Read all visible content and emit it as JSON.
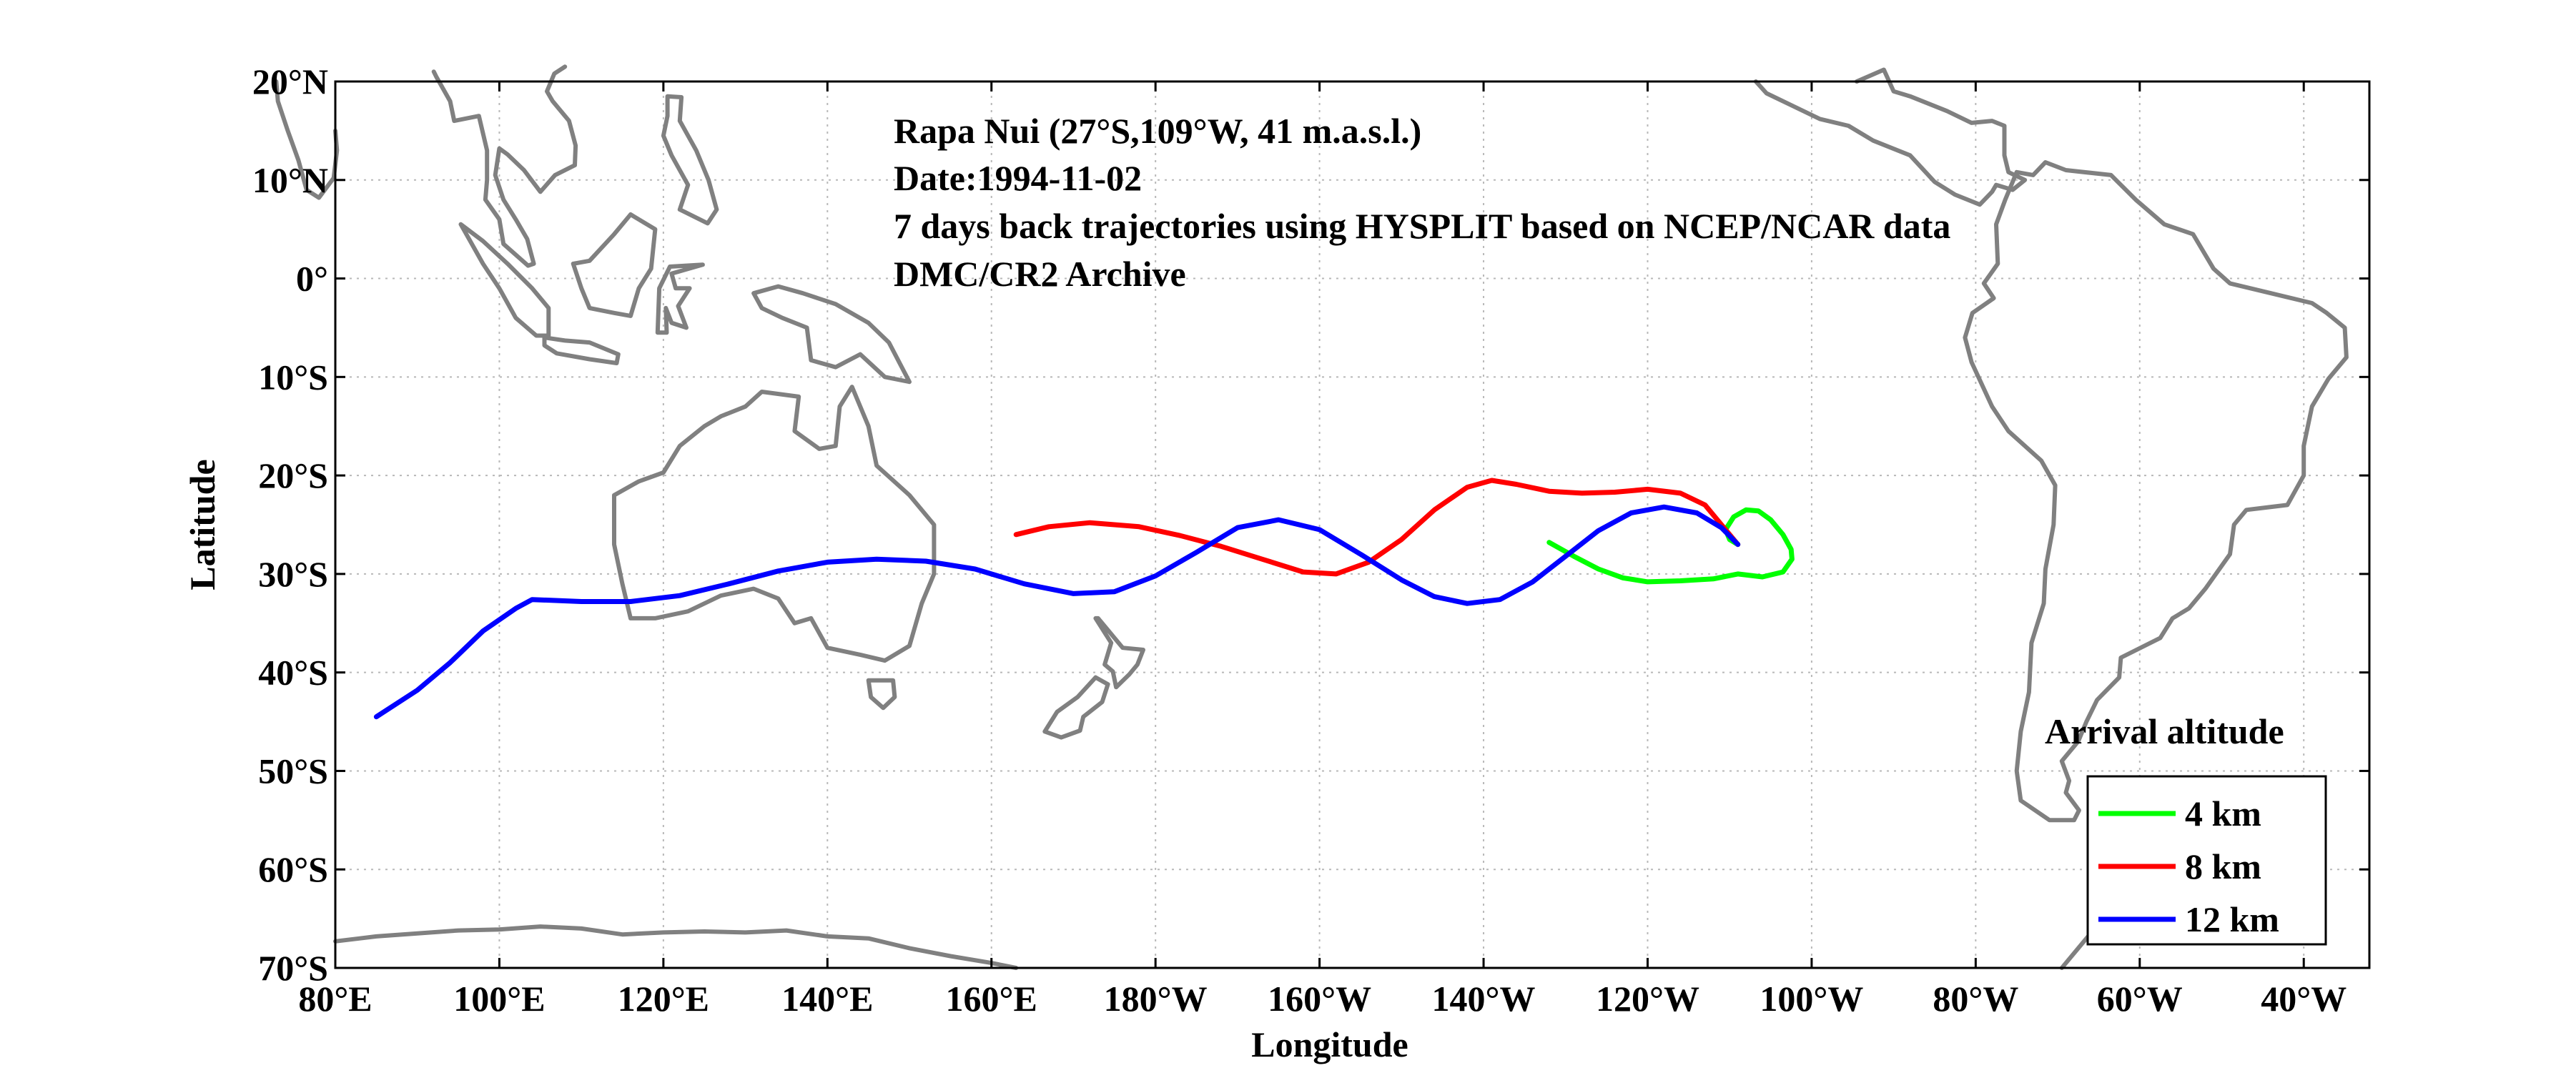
{
  "chart_data": {
    "type": "line",
    "title_lines": [
      "Rapa Nui (27°S,109°W, 41 m.a.s.l.)",
      "Date:1994-11-02",
      "7 days back trajectories using HYSPLIT based on NCEP/NCAR data",
      "DMC/CR2 Archive"
    ],
    "xlabel": "Longitude",
    "ylabel": "Latitude",
    "xlim": [
      80,
      328
    ],
    "ylim": [
      -70,
      20
    ],
    "x_ticks": [
      {
        "value": 80,
        "label": "80°E"
      },
      {
        "value": 100,
        "label": "100°E"
      },
      {
        "value": 120,
        "label": "120°E"
      },
      {
        "value": 140,
        "label": "140°E"
      },
      {
        "value": 160,
        "label": "160°E"
      },
      {
        "value": 180,
        "label": "180°W"
      },
      {
        "value": 200,
        "label": "160°W"
      },
      {
        "value": 220,
        "label": "140°W"
      },
      {
        "value": 240,
        "label": "120°W"
      },
      {
        "value": 260,
        "label": "100°W"
      },
      {
        "value": 280,
        "label": "80°W"
      },
      {
        "value": 300,
        "label": "60°W"
      },
      {
        "value": 320,
        "label": "40°W"
      }
    ],
    "y_ticks": [
      {
        "value": 20,
        "label": "20°N"
      },
      {
        "value": 10,
        "label": "10°N"
      },
      {
        "value": 0,
        "label": "0°"
      },
      {
        "value": -10,
        "label": "10°S"
      },
      {
        "value": -20,
        "label": "20°S"
      },
      {
        "value": -30,
        "label": "30°S"
      },
      {
        "value": -40,
        "label": "40°S"
      },
      {
        "value": -50,
        "label": "50°S"
      },
      {
        "value": -60,
        "label": "60°S"
      },
      {
        "value": -70,
        "label": "70°S"
      }
    ],
    "grid": true,
    "legend": {
      "title": "Arrival altitude",
      "position": "bottom-right"
    },
    "series": [
      {
        "name": "4 km",
        "color": "#00ff00",
        "points": [
          [
            251,
            -27
          ],
          [
            250,
            -26.5
          ],
          [
            249.5,
            -25.5
          ],
          [
            250.5,
            -24.2
          ],
          [
            252,
            -23.5
          ],
          [
            253.5,
            -23.6
          ],
          [
            255,
            -24.5
          ],
          [
            256.5,
            -26
          ],
          [
            257.5,
            -27.5
          ],
          [
            257.6,
            -28.5
          ],
          [
            256.5,
            -29.8
          ],
          [
            254,
            -30.3
          ],
          [
            251,
            -30
          ],
          [
            248,
            -30.5
          ],
          [
            244,
            -30.7
          ],
          [
            240,
            -30.8
          ],
          [
            237,
            -30.4
          ],
          [
            234,
            -29.5
          ],
          [
            231,
            -28.2
          ],
          [
            228,
            -26.8
          ]
        ]
      },
      {
        "name": "8 km",
        "color": "#ff0000",
        "points": [
          [
            251,
            -27
          ],
          [
            249,
            -25
          ],
          [
            247,
            -23
          ],
          [
            244,
            -21.8
          ],
          [
            240,
            -21.4
          ],
          [
            236,
            -21.7
          ],
          [
            232,
            -21.8
          ],
          [
            228,
            -21.6
          ],
          [
            224,
            -20.9
          ],
          [
            221,
            -20.5
          ],
          [
            218,
            -21.2
          ],
          [
            214,
            -23.5
          ],
          [
            210,
            -26.5
          ],
          [
            206,
            -28.8
          ],
          [
            202,
            -30
          ],
          [
            198,
            -29.8
          ],
          [
            193,
            -28.5
          ],
          [
            188,
            -27.2
          ],
          [
            183,
            -26.1
          ],
          [
            178,
            -25.2
          ],
          [
            172,
            -24.8
          ],
          [
            167,
            -25.2
          ],
          [
            163,
            -26
          ]
        ]
      },
      {
        "name": "12 km",
        "color": "#0000ff",
        "points": [
          [
            251,
            -27
          ],
          [
            249,
            -25.3
          ],
          [
            246,
            -23.8
          ],
          [
            242,
            -23.2
          ],
          [
            238,
            -23.8
          ],
          [
            234,
            -25.6
          ],
          [
            230,
            -28.2
          ],
          [
            226,
            -30.8
          ],
          [
            222,
            -32.6
          ],
          [
            218,
            -33
          ],
          [
            214,
            -32.3
          ],
          [
            210,
            -30.6
          ],
          [
            205,
            -28
          ],
          [
            200,
            -25.5
          ],
          [
            195,
            -24.5
          ],
          [
            190,
            -25.3
          ],
          [
            185,
            -27.8
          ],
          [
            180,
            -30.2
          ],
          [
            175,
            -31.8
          ],
          [
            170,
            -32
          ],
          [
            164,
            -31
          ],
          [
            158,
            -29.5
          ],
          [
            152,
            -28.7
          ],
          [
            146,
            -28.5
          ],
          [
            140,
            -28.8
          ],
          [
            134,
            -29.7
          ],
          [
            128,
            -31
          ],
          [
            122,
            -32.2
          ],
          [
            116,
            -32.8
          ],
          [
            110,
            -32.8
          ],
          [
            104,
            -32.6
          ],
          [
            102,
            -33.5
          ],
          [
            98,
            -35.8
          ],
          [
            94,
            -39
          ],
          [
            90,
            -41.8
          ],
          [
            85,
            -44.5
          ]
        ]
      }
    ],
    "coastline_color": "#808080"
  }
}
